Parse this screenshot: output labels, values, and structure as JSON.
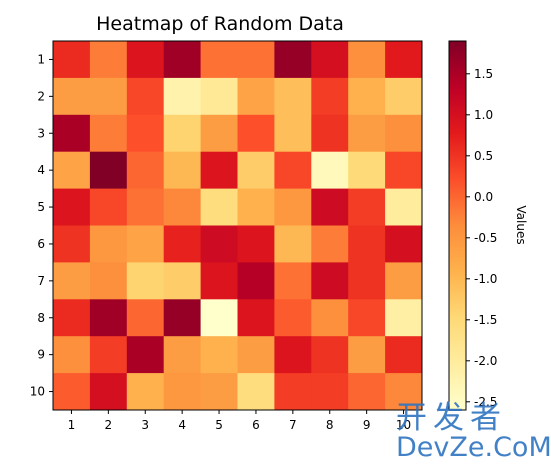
{
  "chart_data": {
    "type": "heatmap",
    "title": "Heatmap of Random Data",
    "xlabel": "",
    "ylabel": "",
    "x_categories": [
      "1",
      "2",
      "3",
      "4",
      "5",
      "6",
      "7",
      "8",
      "9",
      "10"
    ],
    "y_categories": [
      "1",
      "2",
      "3",
      "4",
      "5",
      "6",
      "7",
      "8",
      "9",
      "10"
    ],
    "values": [
      [
        0.6,
        -0.2,
        0.9,
        1.6,
        -0.1,
        -0.1,
        1.7,
        1.0,
        -0.4,
        0.8
      ],
      [
        -0.6,
        -0.6,
        0.3,
        -2.2,
        -1.9,
        -0.7,
        -1.1,
        0.4,
        -0.9,
        -1.3
      ],
      [
        1.5,
        -0.2,
        0.2,
        -1.4,
        -0.6,
        0.2,
        -1.1,
        0.5,
        -0.6,
        -0.4
      ],
      [
        -0.7,
        1.9,
        0.0,
        -1.0,
        0.9,
        -1.3,
        0.3,
        -2.4,
        -1.5,
        0.3
      ],
      [
        0.9,
        0.3,
        -0.1,
        -0.3,
        -1.6,
        -0.9,
        -0.5,
        1.1,
        0.4,
        -2.0
      ],
      [
        0.5,
        -0.5,
        -0.7,
        0.7,
        1.1,
        0.9,
        -1.0,
        -0.2,
        0.5,
        1.0
      ],
      [
        -0.6,
        -0.4,
        -1.4,
        -1.3,
        0.9,
        1.4,
        -0.1,
        1.1,
        0.5,
        -0.6
      ],
      [
        0.6,
        1.6,
        0.0,
        1.7,
        -2.6,
        0.9,
        0.1,
        -0.4,
        0.3,
        -2.1
      ],
      [
        -0.4,
        0.4,
        1.5,
        -0.6,
        -0.9,
        -0.6,
        0.9,
        0.5,
        -0.6,
        0.6
      ],
      [
        0.1,
        1.0,
        -0.9,
        -0.5,
        -0.6,
        -1.6,
        0.4,
        0.4,
        0.0,
        -0.3
      ]
    ],
    "colormap": "YlOrRd",
    "color_range": [
      -2.6,
      1.9
    ],
    "colorbar": {
      "label": "Values",
      "ticks": [
        "-2.5",
        "-2.0",
        "-1.5",
        "-1.0",
        "-0.5",
        "0.0",
        "0.5",
        "1.0",
        "1.5"
      ]
    },
    "grid": false
  },
  "watermark": {
    "cn": "开发者",
    "en": "DevZe.CoM",
    "sub": ""
  }
}
